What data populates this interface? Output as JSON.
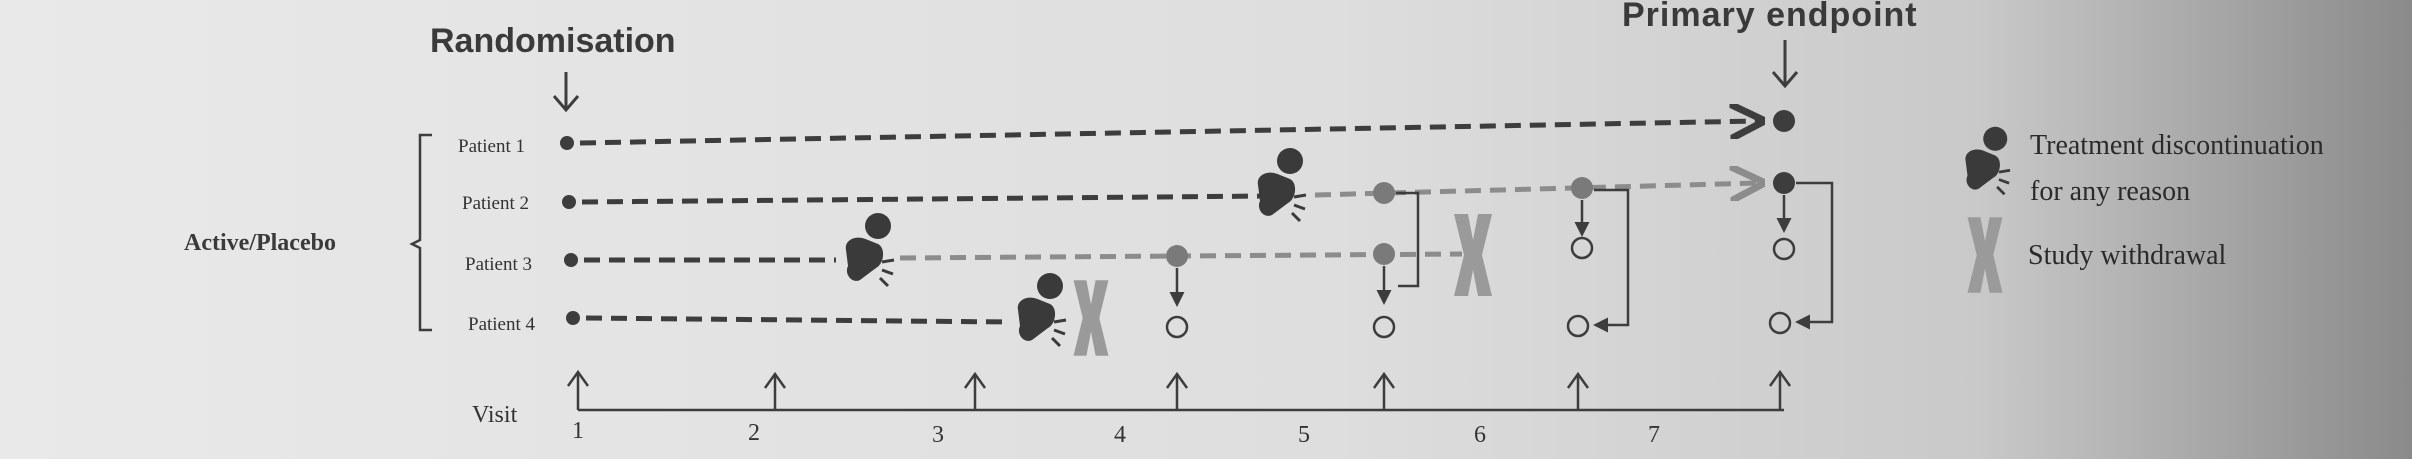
{
  "header": {
    "randomisation": "Randomisation",
    "primary_endpoint": "Primary endpoint"
  },
  "group_label": "Active/Placebo",
  "patients": [
    {
      "label": "Patient 1"
    },
    {
      "label": "Patient 2"
    },
    {
      "label": "Patient 3"
    },
    {
      "label": "Patient 4"
    }
  ],
  "timeline": {
    "visit_label": "Visit",
    "visits": [
      "1",
      "2",
      "3",
      "4",
      "5",
      "6",
      "7"
    ]
  },
  "legend": {
    "discontinuation_line1": "Treatment discontinuation",
    "discontinuation_line2": "for any reason",
    "withdrawal": "Study withdrawal"
  },
  "colors": {
    "dark": "#3d3d3d",
    "light": "#8c8c8c",
    "withdrawal_x": "#9a9a9a"
  }
}
